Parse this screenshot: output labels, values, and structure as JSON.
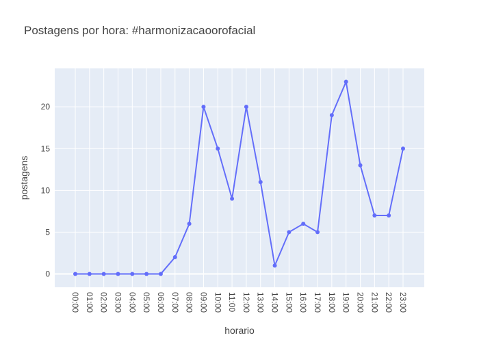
{
  "chart_data": {
    "type": "line",
    "title": "Postagens por hora: #harmonizacaoorofacial",
    "xlabel": "horario",
    "ylabel": "postagens",
    "categories": [
      "00:00",
      "01:00",
      "02:00",
      "03:00",
      "04:00",
      "05:00",
      "06:00",
      "07:00",
      "08:00",
      "09:00",
      "10:00",
      "11:00",
      "12:00",
      "13:00",
      "14:00",
      "15:00",
      "16:00",
      "17:00",
      "18:00",
      "19:00",
      "20:00",
      "21:00",
      "22:00",
      "23:00"
    ],
    "series": [
      {
        "values": [
          0,
          0,
          0,
          0,
          0,
          0,
          0,
          2,
          6,
          20,
          15,
          9,
          20,
          11,
          1,
          5,
          6,
          5,
          19,
          23,
          13,
          7,
          7,
          15
        ]
      }
    ],
    "ylim": [
      -1.6,
      24.6
    ],
    "yticks": [
      0,
      5,
      10,
      15,
      20
    ],
    "grid": true,
    "legend": "none",
    "colors": {
      "plot_background": "#e5ecf6",
      "grid": "#ffffff",
      "line": "#636efa",
      "text": "#444444"
    }
  }
}
